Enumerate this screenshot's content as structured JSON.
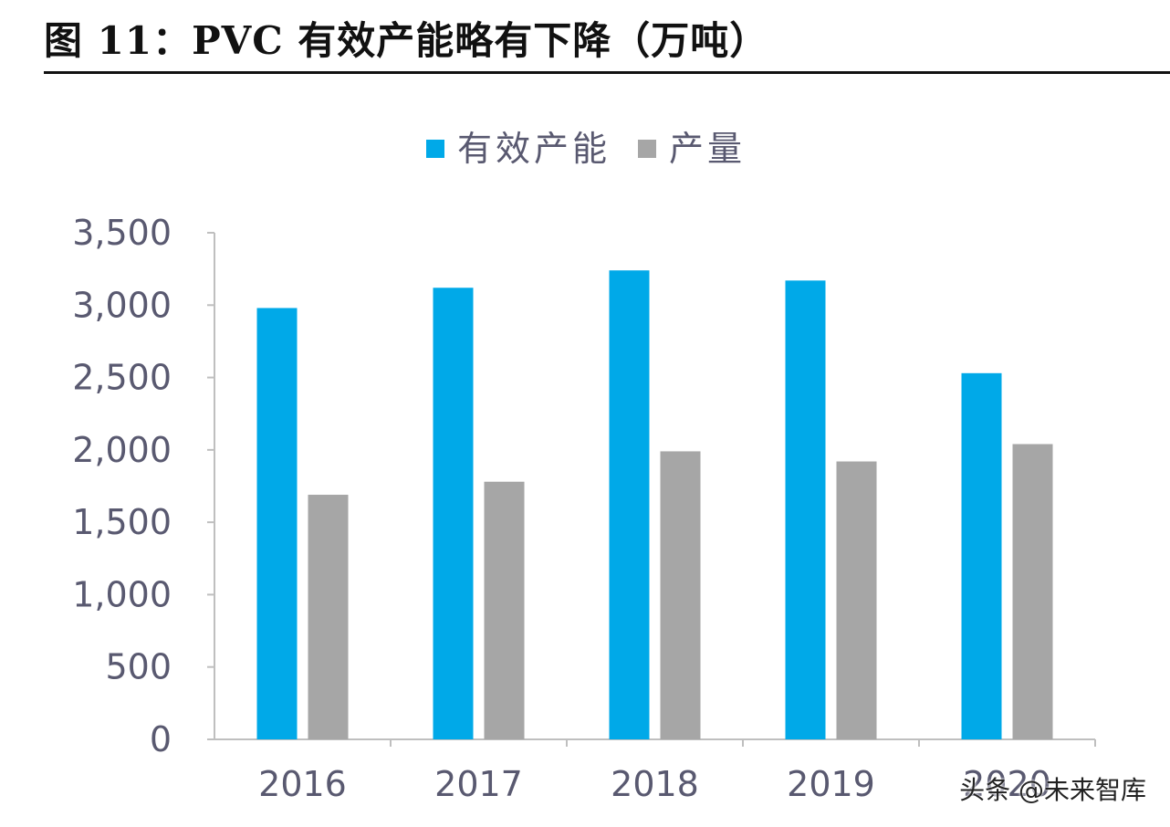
{
  "title": "图 11：PVC 有效产能略有下降（万吨）",
  "watermark": "头条 @未来智库",
  "chart_data": {
    "type": "bar",
    "categories": [
      "2016",
      "2017",
      "2018",
      "2019",
      "2020"
    ],
    "series": [
      {
        "name": "有效产能",
        "color": "#00a9e8",
        "values": [
          2980,
          3120,
          3240,
          3170,
          2530
        ]
      },
      {
        "name": "产量",
        "color": "#a6a6a6",
        "values": [
          1690,
          1780,
          1990,
          1920,
          2040
        ]
      }
    ],
    "ylim": [
      0,
      3500
    ],
    "yticks": [
      "0",
      "500",
      "1,000",
      "1,500",
      "2,000",
      "2,500",
      "3,000",
      "3,500"
    ],
    "xlabel": "",
    "ylabel": "",
    "legend_position": "top-center",
    "grid": false
  }
}
